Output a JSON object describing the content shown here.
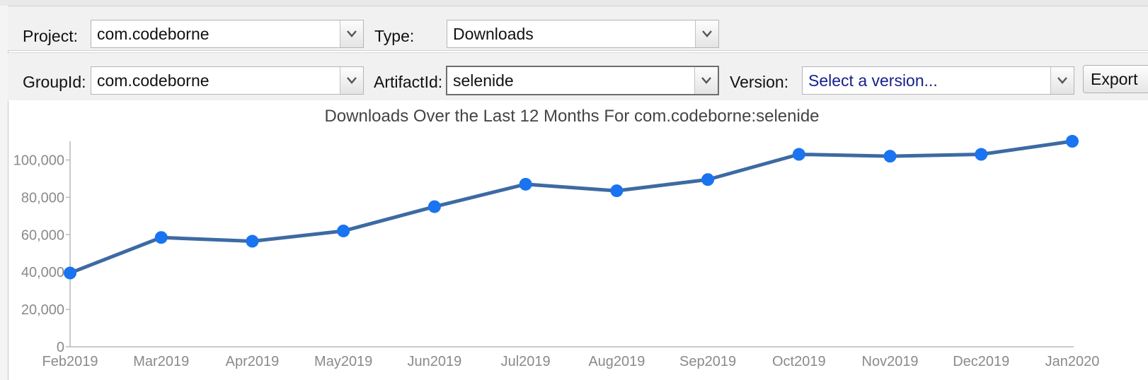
{
  "form": {
    "project_label": "Project:",
    "project_value": "com.codeborne",
    "type_label": "Type:",
    "type_value": "Downloads",
    "groupid_label": "GroupId:",
    "groupid_value": "com.codeborne",
    "artifactid_label": "ArtifactId:",
    "artifactid_value": "selenide",
    "version_label": "Version:",
    "version_placeholder": "Select a version...",
    "export_label": "Export"
  },
  "icons": {
    "dropdown": "chevron-down-icon"
  },
  "colors": {
    "line": "#3d6aa3",
    "point": "#1a73f0",
    "placeholder_text": "#16218c"
  },
  "chart_data": {
    "type": "line",
    "title": "Downloads Over the Last 12 Months For com.codeborne:selenide",
    "xlabel": "",
    "ylabel": "",
    "categories": [
      "Feb2019",
      "Mar2019",
      "Apr2019",
      "May2019",
      "Jun2019",
      "Jul2019",
      "Aug2019",
      "Sep2019",
      "Oct2019",
      "Nov2019",
      "Dec2019",
      "Jan2020"
    ],
    "values": [
      39500,
      58500,
      56500,
      62000,
      75000,
      87000,
      83500,
      89500,
      103000,
      102000,
      103000,
      110000
    ],
    "ylim": [
      0,
      110000
    ],
    "yticks": [
      0,
      20000,
      40000,
      60000,
      80000,
      100000
    ],
    "ytick_labels": [
      "0",
      "20,000",
      "40,000",
      "60,000",
      "80,000",
      "100,000"
    ],
    "grid": false,
    "legend": "none"
  }
}
